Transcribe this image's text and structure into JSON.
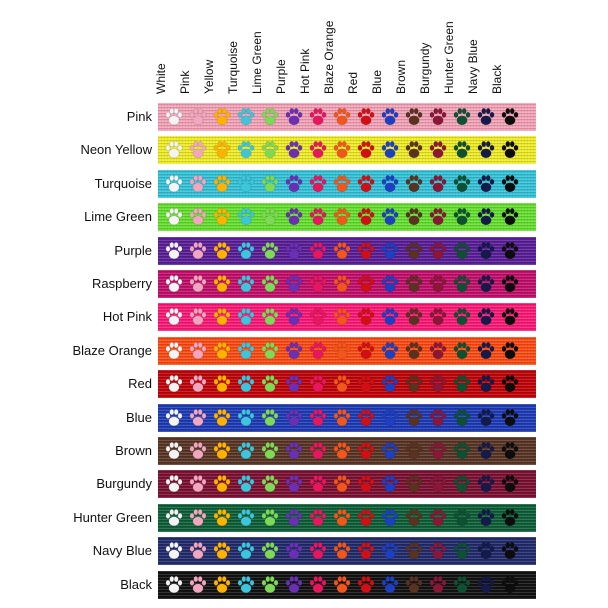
{
  "columns": [
    "White",
    "Pink",
    "Yellow",
    "Turquoise",
    "Lime Green",
    "Purple",
    "Hot Pink",
    "Blaze Orange",
    "Red",
    "Blue",
    "Brown",
    "Burgundy",
    "Hunter Green",
    "Navy Blue",
    "Black"
  ],
  "rows": [
    "Pink",
    "Neon Yellow",
    "Turquoise",
    "Lime Green",
    "Purple",
    "Raspberry",
    "Hot Pink",
    "Blaze Orange",
    "Red",
    "Blue",
    "Brown",
    "Burgundy",
    "Hunter Green",
    "Navy Blue",
    "Black"
  ],
  "colors": {
    "White": "#f4f4f4",
    "Pink": "#f2a6bf",
    "Yellow": "#ffb300",
    "Turquoise": "#3cc6dc",
    "Lime Green": "#7ed957",
    "Purple": "#6a2fb4",
    "Hot Pink": "#e8155f",
    "Blaze Orange": "#f2561a",
    "Red": "#d10f14",
    "Blue": "#1d3fc1",
    "Brown": "#5a3220",
    "Burgundy": "#8a1638",
    "Hunter Green": "#0e5132",
    "Navy Blue": "#141a4a",
    "Black": "#0d0d0d",
    "Neon Yellow": "#f1ee2a",
    "Raspberry": "#c4106c"
  },
  "ribbon_colors": {
    "Pink": "#f6a5b9",
    "Neon Yellow": "#f1ee2a",
    "Turquoise": "#36c5db",
    "Lime Green": "#67e230",
    "Purple": "#5b1f9a",
    "Raspberry": "#c4106c",
    "Hot Pink": "#ff1a78",
    "Blaze Orange": "#ff4d14",
    "Red": "#c2040a",
    "Blue": "#1f3cb8",
    "Brown": "#5a3626",
    "Burgundy": "#7d1134",
    "Hunter Green": "#0f6139",
    "Navy Blue": "#232c6e",
    "Black": "#121212"
  },
  "paw_icon": "paw-print-icon"
}
